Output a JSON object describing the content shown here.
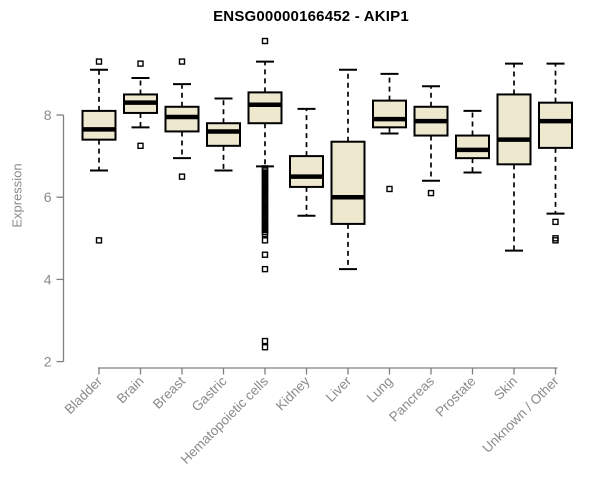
{
  "chart_data": {
    "type": "boxplot",
    "title": "ENSG00000166452 - AKIP1",
    "xlabel": "",
    "ylabel": "Expression",
    "yticks": [
      2,
      4,
      6,
      8
    ],
    "ylim": [
      1.8,
      9.9
    ],
    "grid": false,
    "legend": "none",
    "categories": [
      "Bladder",
      "Brain",
      "Breast",
      "Gastric",
      "Hematopoietic cells",
      "Kidney",
      "Liver",
      "Lung",
      "Pancreas",
      "Prostate",
      "Skin",
      "Unknown / Other"
    ],
    "series": [
      {
        "category": "Bladder",
        "whislo": 6.65,
        "q1": 7.4,
        "med": 7.65,
        "q3": 8.1,
        "whishi": 9.1,
        "outliers": [
          9.3,
          4.95
        ]
      },
      {
        "category": "Brain",
        "whislo": 7.7,
        "q1": 8.05,
        "med": 8.3,
        "q3": 8.5,
        "whishi": 8.9,
        "outliers": [
          9.25,
          7.25
        ]
      },
      {
        "category": "Breast",
        "whislo": 6.95,
        "q1": 7.6,
        "med": 7.95,
        "q3": 8.2,
        "whishi": 8.75,
        "outliers": [
          9.3,
          6.5
        ]
      },
      {
        "category": "Gastric",
        "whislo": 6.65,
        "q1": 7.25,
        "med": 7.6,
        "q3": 7.8,
        "whishi": 8.4,
        "outliers": []
      },
      {
        "category": "Hematopoietic cells",
        "whislo": 6.75,
        "q1": 7.8,
        "med": 8.25,
        "q3": 8.55,
        "whishi": 9.3,
        "outliers": [
          9.8,
          6.7,
          6.65,
          6.6,
          6.55,
          6.5,
          6.45,
          6.4,
          6.35,
          6.3,
          6.25,
          6.2,
          6.15,
          6.1,
          6.05,
          6.0,
          5.95,
          5.9,
          5.85,
          5.8,
          5.75,
          5.7,
          5.65,
          5.6,
          5.55,
          5.5,
          5.45,
          5.4,
          5.35,
          5.3,
          5.25,
          5.2,
          5.15,
          5.1,
          4.95,
          4.6,
          4.25,
          2.5,
          2.35
        ]
      },
      {
        "category": "Kidney",
        "whislo": 5.55,
        "q1": 6.25,
        "med": 6.5,
        "q3": 7.0,
        "whishi": 8.15,
        "outliers": []
      },
      {
        "category": "Liver",
        "whislo": 4.25,
        "q1": 5.35,
        "med": 6.0,
        "q3": 7.35,
        "whishi": 9.1,
        "outliers": []
      },
      {
        "category": "Lung",
        "whislo": 7.55,
        "q1": 7.7,
        "med": 7.9,
        "q3": 8.35,
        "whishi": 9.0,
        "outliers": [
          6.2
        ]
      },
      {
        "category": "Pancreas",
        "whislo": 6.4,
        "q1": 7.5,
        "med": 7.85,
        "q3": 8.2,
        "whishi": 8.7,
        "outliers": [
          6.1
        ]
      },
      {
        "category": "Prostate",
        "whislo": 6.6,
        "q1": 6.95,
        "med": 7.15,
        "q3": 7.5,
        "whishi": 8.1,
        "outliers": []
      },
      {
        "category": "Skin",
        "whislo": 4.7,
        "q1": 6.8,
        "med": 7.4,
        "q3": 8.5,
        "whishi": 9.25,
        "outliers": []
      },
      {
        "category": "Unknown / Other",
        "whislo": 5.6,
        "q1": 7.2,
        "med": 7.85,
        "q3": 8.3,
        "whishi": 9.25,
        "outliers": [
          5.4,
          5.0,
          4.95
        ]
      }
    ],
    "colors": {
      "box_fill": "#EDE8CE",
      "box_border": "#000000",
      "median": "#000000",
      "whisker": "#000000",
      "outlier": "#000000",
      "axis": "#808080",
      "text": "#8a8a8a",
      "title": "#000000"
    }
  }
}
